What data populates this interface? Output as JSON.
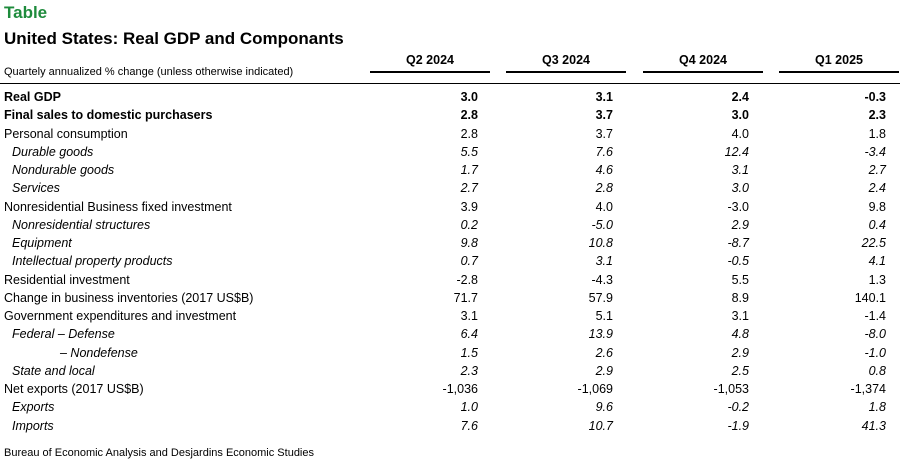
{
  "header": {
    "tag": "Table",
    "title": "United States: Real GDP and Componants",
    "subtitle": "Quartely annualized % change (unless otherwise indicated)"
  },
  "columns": [
    "Q2 2024",
    "Q3 2024",
    "Q4 2024",
    "Q1 2025"
  ],
  "rows": [
    {
      "label": "Real GDP",
      "values": [
        "3.0",
        "3.1",
        "2.4",
        "-0.3"
      ],
      "style": "bold"
    },
    {
      "label": "Final sales to domestic purchasers",
      "values": [
        "2.8",
        "3.7",
        "3.0",
        "2.3"
      ],
      "style": "bold"
    },
    {
      "label": "Personal consumption",
      "values": [
        "2.8",
        "3.7",
        "4.0",
        "1.8"
      ],
      "style": "normal"
    },
    {
      "label": "Durable goods",
      "values": [
        "5.5",
        "7.6",
        "12.4",
        "-3.4"
      ],
      "style": "italic"
    },
    {
      "label": "Nondurable goods",
      "values": [
        "1.7",
        "4.6",
        "3.1",
        "2.7"
      ],
      "style": "italic"
    },
    {
      "label": "Services",
      "values": [
        "2.7",
        "2.8",
        "3.0",
        "2.4"
      ],
      "style": "italic"
    },
    {
      "label": "Nonresidential Business fixed investment",
      "values": [
        "3.9",
        "4.0",
        "-3.0",
        "9.8"
      ],
      "style": "normal"
    },
    {
      "label": "Nonresidential structures",
      "values": [
        "0.2",
        "-5.0",
        "2.9",
        "0.4"
      ],
      "style": "italic"
    },
    {
      "label": "Equipment",
      "values": [
        "9.8",
        "10.8",
        "-8.7",
        "22.5"
      ],
      "style": "italic"
    },
    {
      "label": "Intellectual property products",
      "values": [
        "0.7",
        "3.1",
        "-0.5",
        "4.1"
      ],
      "style": "italic"
    },
    {
      "label": "Residential investment",
      "values": [
        "-2.8",
        "-4.3",
        "5.5",
        "1.3"
      ],
      "style": "normal"
    },
    {
      "label": "Change in business inventories (2017 US$B)",
      "values": [
        "71.7",
        "57.9",
        "8.9",
        "140.1"
      ],
      "style": "normal"
    },
    {
      "label": "Government expenditures and investment",
      "values": [
        "3.1",
        "5.1",
        "3.1",
        "-1.4"
      ],
      "style": "normal"
    },
    {
      "label": "Federal – Defense",
      "values": [
        "6.4",
        "13.9",
        "4.8",
        "-8.0"
      ],
      "style": "italic"
    },
    {
      "label": "– Nondefense",
      "values": [
        "1.5",
        "2.6",
        "2.9",
        "-1.0"
      ],
      "style": "italic-deep"
    },
    {
      "label": "State and local",
      "values": [
        "2.3",
        "2.9",
        "2.5",
        "0.8"
      ],
      "style": "italic"
    },
    {
      "label": "Net exports (2017 US$B)",
      "values": [
        "-1,036",
        "-1,069",
        "-1,053",
        "-1,374"
      ],
      "style": "normal"
    },
    {
      "label": "Exports",
      "values": [
        "1.0",
        "9.6",
        "-0.2",
        "1.8"
      ],
      "style": "italic"
    },
    {
      "label": "Imports",
      "values": [
        "7.6",
        "10.7",
        "-1.9",
        "41.3"
      ],
      "style": "italic"
    }
  ],
  "source": "Bureau of Economic Analysis and Desjardins Economic Studies"
}
